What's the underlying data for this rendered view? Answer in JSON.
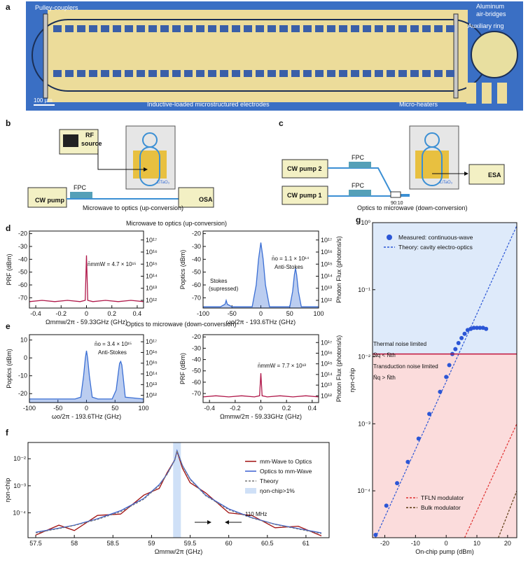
{
  "panel_labels": [
    "a",
    "b",
    "c",
    "d",
    "e",
    "f",
    "g"
  ],
  "panel_a": {
    "labels": [
      "Pulley-couplers",
      "Aluminum",
      "air-bridges",
      "Auxiliary ring",
      "Inductive-loaded microstructured electrodes",
      "Micro-heaters",
      "100 µm"
    ]
  },
  "panel_b": {
    "rf": "RF",
    "source": "source",
    "cw_pump": "CW pump",
    "fpc": "FPC",
    "osa": "OSA",
    "litao": "LiTaO₃",
    "caption": "Microwave to optics (up-conversion)"
  },
  "panel_c": {
    "cw_pump2": "CW pump 2",
    "cw_pump1": "CW pump 1",
    "fpc_top": "FPC",
    "fpc_bottom": "FPC",
    "splitter": "90:10",
    "esa": "ESA",
    "litao": "LiTaO₃",
    "caption": "Optics to microwave (down-conversion)"
  },
  "section_titles": [
    "Microwave to optics (up-conversion)",
    "Optics to microwave (down-conversion)"
  ],
  "chart_data": [
    {
      "type": "line",
      "xlabel": "Ωmmw/2π - 59.33GHz (GHz)",
      "ylabel": "PRF (dBm)",
      "xlim": [
        -0.45,
        0.45
      ],
      "xticks": [
        -0.4,
        -0.2,
        0,
        0.2,
        0.4
      ],
      "ylim": [
        -78,
        -18
      ],
      "yticks": [
        -20,
        -30,
        -40,
        -50,
        -60,
        -70
      ],
      "y2log": true,
      "y2lim": [
        230000000000.0,
        5.5e+17
      ],
      "y2ticks": [
        {
          "value": 1000000000000.0,
          "label": "10¹²"
        },
        {
          "value": 10000000000000.0,
          "label": "10¹³"
        },
        {
          "value": 100000000000000.0,
          "label": "10¹⁴"
        },
        {
          "value": 1000000000000000.0,
          "label": "10¹⁵"
        },
        {
          "value": 1e+16,
          "label": "10¹⁶"
        },
        {
          "value": 1e+17,
          "label": "10¹⁷"
        }
      ],
      "series": [
        {
          "color": "#b0184a",
          "x": [
            -0.45,
            -0.35,
            -0.25,
            -0.15,
            -0.05,
            -0.01,
            0,
            0.01,
            0.05,
            0.15,
            0.25,
            0.35,
            0.45
          ],
          "values": [
            -73,
            -72,
            -73,
            -72,
            -73,
            -72,
            -37,
            -72,
            -73,
            -72,
            -73,
            -72,
            -73
          ]
        }
      ],
      "annotations": [
        "n̄mmW = 4.7 × 10¹⁵"
      ]
    },
    {
      "type": "line",
      "xlabel": "ωo/2π - 193.6THz (GHz)",
      "ylabel": "Poptics (dBm)",
      "y2label": "Photon Flux (photons/s)",
      "xlim": [
        -100,
        100
      ],
      "xticks": [
        -100,
        -50,
        0,
        50,
        100
      ],
      "ylim": [
        -78,
        -18
      ],
      "yticks": [
        -20,
        -30,
        -40,
        -50,
        -60,
        -70
      ],
      "y2log": true,
      "y2lim": [
        230000000000.0,
        5.5e+17
      ],
      "y2ticks": [
        {
          "value": 1000000000000.0,
          "label": "10¹²"
        },
        {
          "value": 10000000000000.0,
          "label": "10¹³"
        },
        {
          "value": 100000000000000.0,
          "label": "10¹⁴"
        },
        {
          "value": 1000000000000000.0,
          "label": "10¹⁵"
        },
        {
          "value": 1e+16,
          "label": "10¹⁶"
        },
        {
          "value": 1e+17,
          "label": "10¹⁷"
        }
      ],
      "series": [
        {
          "color": "#3b6fd4",
          "fill": true,
          "x": [
            -100,
            -70,
            -62,
            -60,
            -58,
            -50,
            -15,
            -8,
            -4,
            0,
            4,
            8,
            15,
            50,
            55,
            58,
            60,
            62,
            65,
            70,
            100
          ],
          "values": [
            -77,
            -77,
            -75,
            -72,
            -75,
            -77,
            -77,
            -60,
            -40,
            -27,
            -40,
            -60,
            -77,
            -77,
            -65,
            -52,
            -47,
            -52,
            -65,
            -77,
            -77
          ]
        }
      ],
      "annotations": [
        "Stokes",
        "(supressed)",
        "n̄o = 1.1 × 10¹⁴",
        "Anti-Stokes"
      ]
    },
    {
      "type": "line",
      "xlabel": "ωo/2π - 193.6THz (GHz)",
      "ylabel": "Poptics (dBm)",
      "xlim": [
        -100,
        100
      ],
      "xticks": [
        -100,
        -50,
        0,
        50,
        100
      ],
      "ylim": [
        -25,
        13
      ],
      "yticks": [
        10,
        0,
        -10,
        -20
      ],
      "y2log": true,
      "y2lim": [
        210000000000.0,
        4.6e+17
      ],
      "y2ticks": [
        {
          "value": 1000000000000.0,
          "label": "10¹²"
        },
        {
          "value": 10000000000000.0,
          "label": "10¹³"
        },
        {
          "value": 100000000000000.0,
          "label": "10¹⁴"
        },
        {
          "value": 1000000000000000.0,
          "label": "10¹⁵"
        },
        {
          "value": 1e+16,
          "label": "10¹⁶"
        },
        {
          "value": 1e+17,
          "label": "10¹⁷"
        }
      ],
      "series": [
        {
          "color": "#3b6fd4",
          "fill": true,
          "x": [
            -100,
            -20,
            -10,
            -5,
            -2,
            0,
            2,
            5,
            10,
            20,
            45,
            52,
            56,
            58,
            60,
            62,
            64,
            68,
            100
          ],
          "values": [
            -23,
            -23,
            -22,
            -10,
            0,
            4,
            0,
            -10,
            -22,
            -23,
            -23,
            -18,
            -8,
            -3,
            -2,
            -4,
            -10,
            -22,
            -23
          ]
        }
      ],
      "annotations": [
        "n̄o = 3.4 × 10¹⁵",
        "Anti-Stokes"
      ]
    },
    {
      "type": "line",
      "xlabel": "Ωmmw/2π - 59.33GHz (GHz)",
      "ylabel": "PRF (dBm)",
      "y2label": "Photon Flux (photons/s)",
      "xlim": [
        -0.45,
        0.45
      ],
      "xticks": [
        -0.4,
        -0.2,
        0,
        0.2,
        0.4
      ],
      "ylim": [
        -78,
        -18
      ],
      "yticks": [
        -20,
        -30,
        -40,
        -50,
        -60,
        -70
      ],
      "y2log": true,
      "y2lim": [
        230000000000.0,
        5.5e+17
      ],
      "y2ticks": [
        {
          "value": 1000000000000.0,
          "label": "10¹²"
        },
        {
          "value": 10000000000000.0,
          "label": "10¹³"
        },
        {
          "value": 100000000000000.0,
          "label": "10¹⁴"
        },
        {
          "value": 1000000000000000.0,
          "label": "10¹⁵"
        },
        {
          "value": 1e+16,
          "label": "10¹⁶"
        },
        {
          "value": 1e+17,
          "label": "10¹⁷"
        }
      ],
      "series": [
        {
          "color": "#b0184a",
          "x": [
            -0.45,
            -0.35,
            -0.25,
            -0.15,
            -0.05,
            -0.01,
            0,
            0.01,
            0.05,
            0.15,
            0.25,
            0.35,
            0.45
          ],
          "values": [
            -73,
            -72,
            -73,
            -72,
            -73,
            -72,
            -52,
            -72,
            -73,
            -72,
            -73,
            -72,
            -73
          ]
        }
      ],
      "annotations": [
        "n̄mmW = 7.7 × 10¹³"
      ]
    },
    {
      "type": "line",
      "xlabel": "Ωmmw/2π (GHz)",
      "ylabel": "ηon-chip",
      "ylog": true,
      "xlim": [
        57.4,
        61.3
      ],
      "xticks": [
        57.5,
        58,
        58.5,
        59,
        59.5,
        60,
        60.5,
        61
      ],
      "ylim": [
        1.2e-05,
        0.04
      ],
      "yticks": [
        {
          "value": 0.0001,
          "label": "10⁻⁴"
        },
        {
          "value": 0.001,
          "label": "10⁻³"
        },
        {
          "value": 0.01,
          "label": "10⁻²"
        }
      ],
      "band": {
        "name": "ηon-chip>1%",
        "color": "#cfe0f7",
        "range": [
          59.28,
          59.38
        ]
      },
      "series": [
        {
          "name": "mm-Wave to Optics",
          "color": "#a01010",
          "x": [
            57.5,
            57.8,
            58,
            58.3,
            58.6,
            58.9,
            59.1,
            59.2,
            59.3,
            59.33,
            59.4,
            59.5,
            59.7,
            60,
            60.3,
            60.6,
            60.9,
            61.2
          ],
          "values": [
            1.5e-05,
            3.5e-05,
            2.2e-05,
            8e-05,
            9e-05,
            0.00045,
            0.0008,
            0.003,
            0.009,
            0.019,
            0.0045,
            0.0013,
            0.00055,
            0.0001,
            8e-05,
            2.8e-05,
            3.2e-05,
            1.4e-05
          ]
        },
        {
          "name": "Optics to mm-Wave",
          "color": "#3a5fd0",
          "x": [
            57.5,
            57.8,
            58,
            58.3,
            58.6,
            58.9,
            59.1,
            59.2,
            59.3,
            59.33,
            59.4,
            59.5,
            59.7,
            60,
            60.3,
            60.6,
            60.9,
            61.2
          ],
          "values": [
            1.9e-05,
            2.7e-05,
            3.5e-05,
            6e-05,
            0.00012,
            0.00034,
            0.0011,
            0.0027,
            0.009,
            0.02,
            0.0057,
            0.0018,
            0.00045,
            0.00014,
            6.6e-05,
            3.8e-05,
            2.6e-05,
            1.8e-05
          ]
        },
        {
          "name": "Theory",
          "color": "#777777",
          "dash": true,
          "x": [
            57.5,
            57.8,
            58,
            58.3,
            58.6,
            58.9,
            59.1,
            59.2,
            59.3,
            59.33,
            59.4,
            59.5,
            59.7,
            60,
            60.3,
            60.6,
            60.9,
            61.2
          ],
          "values": [
            1.8e-05,
            2.6e-05,
            3.4e-05,
            5.7e-05,
            0.00011,
            0.00032,
            0.00103,
            0.0026,
            0.0087,
            0.02,
            0.0055,
            0.0017,
            0.00043,
            0.00013,
            6.4e-05,
            3.7e-05,
            2.5e-05,
            1.7e-05
          ]
        }
      ],
      "annotations": [
        "110 MHz"
      ]
    },
    {
      "type": "scatter",
      "xlabel": "On-chip pump (dBm)",
      "ylabel": "ηon-chip",
      "ylog": true,
      "xlim": [
        -24,
        23
      ],
      "xticks": [
        -20,
        -10,
        0,
        10,
        20
      ],
      "ylim": [
        2e-05,
        1
      ],
      "yticks": [
        {
          "value": 0.0001,
          "label": "10⁻⁴"
        },
        {
          "value": 0.001,
          "label": "10⁻³"
        },
        {
          "value": 0.01,
          "label": "10⁻²"
        },
        {
          "value": 0.1,
          "label": "10⁻¹"
        },
        {
          "value": 1,
          "label": "10⁰"
        }
      ],
      "hline": {
        "value": 0.011,
        "color": "#c0143c",
        "above": "#deeafa",
        "below": "#fbdcdc"
      },
      "series": [
        {
          "name": "Measured: continuous-wave",
          "color": "#2b56d6",
          "marker": true,
          "x": [
            -23,
            -19.5,
            -16,
            -12.5,
            -9,
            -5.5,
            -2,
            0,
            1,
            2,
            3,
            4,
            5,
            6,
            7,
            8,
            9,
            10,
            11,
            12,
            13
          ],
          "values": [
            2.2e-05,
            6e-05,
            0.00013,
            0.00027,
            0.0006,
            0.0014,
            0.003,
            0.005,
            0.0075,
            0.011,
            0.013,
            0.016,
            0.019,
            0.022,
            0.025,
            0.026,
            0.027,
            0.027,
            0.027,
            0.027,
            0.026
          ]
        },
        {
          "name": "Theory: cavity electro-optics",
          "color": "#2b56d6",
          "dash": true,
          "x": [
            -24,
            23
          ],
          "values": [
            1.6e-05,
            0.9
          ]
        },
        {
          "name": "TFLN modulator",
          "color": "#e03030",
          "dash": true,
          "x": [
            6,
            23
          ],
          "values": [
            2e-05,
            0.001
          ]
        },
        {
          "name": "Bulk modulator",
          "color": "#5a3a10",
          "dash": true,
          "x": [
            17,
            23
          ],
          "values": [
            2e-05,
            0.0001
          ]
        }
      ],
      "annotations": [
        "Thermal noise limited",
        "N̄q < N̄th",
        "Transduction noise limited",
        "N̄q > N̄th"
      ]
    }
  ]
}
